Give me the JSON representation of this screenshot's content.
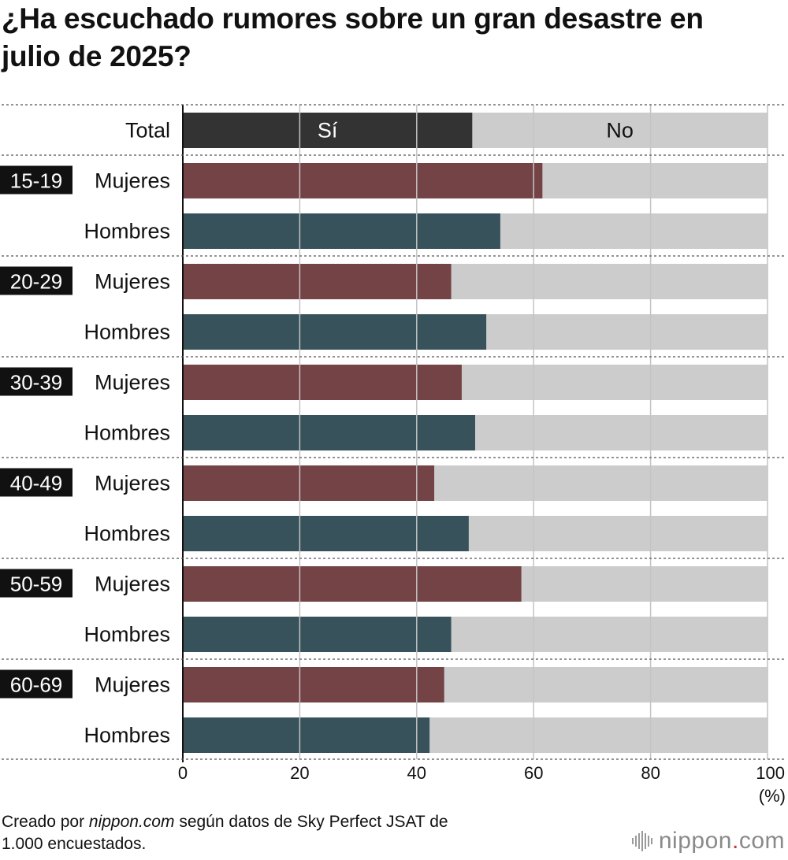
{
  "title_lines": [
    "¿Ha escuchado rumores sobre un gran desastre en",
    "julio de 2025?"
  ],
  "footer": {
    "prefix": "Creado por ",
    "source": "nippon.com",
    "middle": " según datos de Sky Perfect JSAT de",
    "line2": "1.000 encuestados."
  },
  "logo": {
    "name": "nippon",
    "dot": ".",
    "suffix": "com"
  },
  "colors": {
    "total": "#333333",
    "women": "#744345",
    "men": "#37525a",
    "no": "#cccccc",
    "badge": "#111111",
    "logo_dot": "#c0392b"
  },
  "chart_data": {
    "type": "bar",
    "orientation": "horizontal",
    "stacked": true,
    "xlim": [
      0,
      100
    ],
    "x_ticks": [
      0,
      20,
      40,
      60,
      80,
      100
    ],
    "x_unit": "(%)",
    "grid": true,
    "segment_labels": {
      "yes": "Sí",
      "no": "No"
    },
    "rows": [
      {
        "group": "",
        "label": "Total",
        "yes": 49.5,
        "series": "total"
      },
      {
        "group": "15-19",
        "label": "Mujeres",
        "yes": 61.5,
        "series": "women"
      },
      {
        "group": "",
        "label": "Hombres",
        "yes": 54.3,
        "series": "men"
      },
      {
        "group": "20-29",
        "label": "Mujeres",
        "yes": 45.9,
        "series": "women"
      },
      {
        "group": "",
        "label": "Hombres",
        "yes": 51.9,
        "series": "men"
      },
      {
        "group": "30-39",
        "label": "Mujeres",
        "yes": 47.7,
        "series": "women"
      },
      {
        "group": "",
        "label": "Hombres",
        "yes": 50.0,
        "series": "men"
      },
      {
        "group": "40-49",
        "label": "Mujeres",
        "yes": 43.0,
        "series": "women"
      },
      {
        "group": "",
        "label": "Hombres",
        "yes": 48.9,
        "series": "men"
      },
      {
        "group": "50-59",
        "label": "Mujeres",
        "yes": 57.9,
        "series": "women"
      },
      {
        "group": "",
        "label": "Hombres",
        "yes": 45.9,
        "series": "men"
      },
      {
        "group": "60-69",
        "label": "Mujeres",
        "yes": 44.7,
        "series": "women"
      },
      {
        "group": "",
        "label": "Hombres",
        "yes": 42.2,
        "series": "men"
      }
    ]
  }
}
